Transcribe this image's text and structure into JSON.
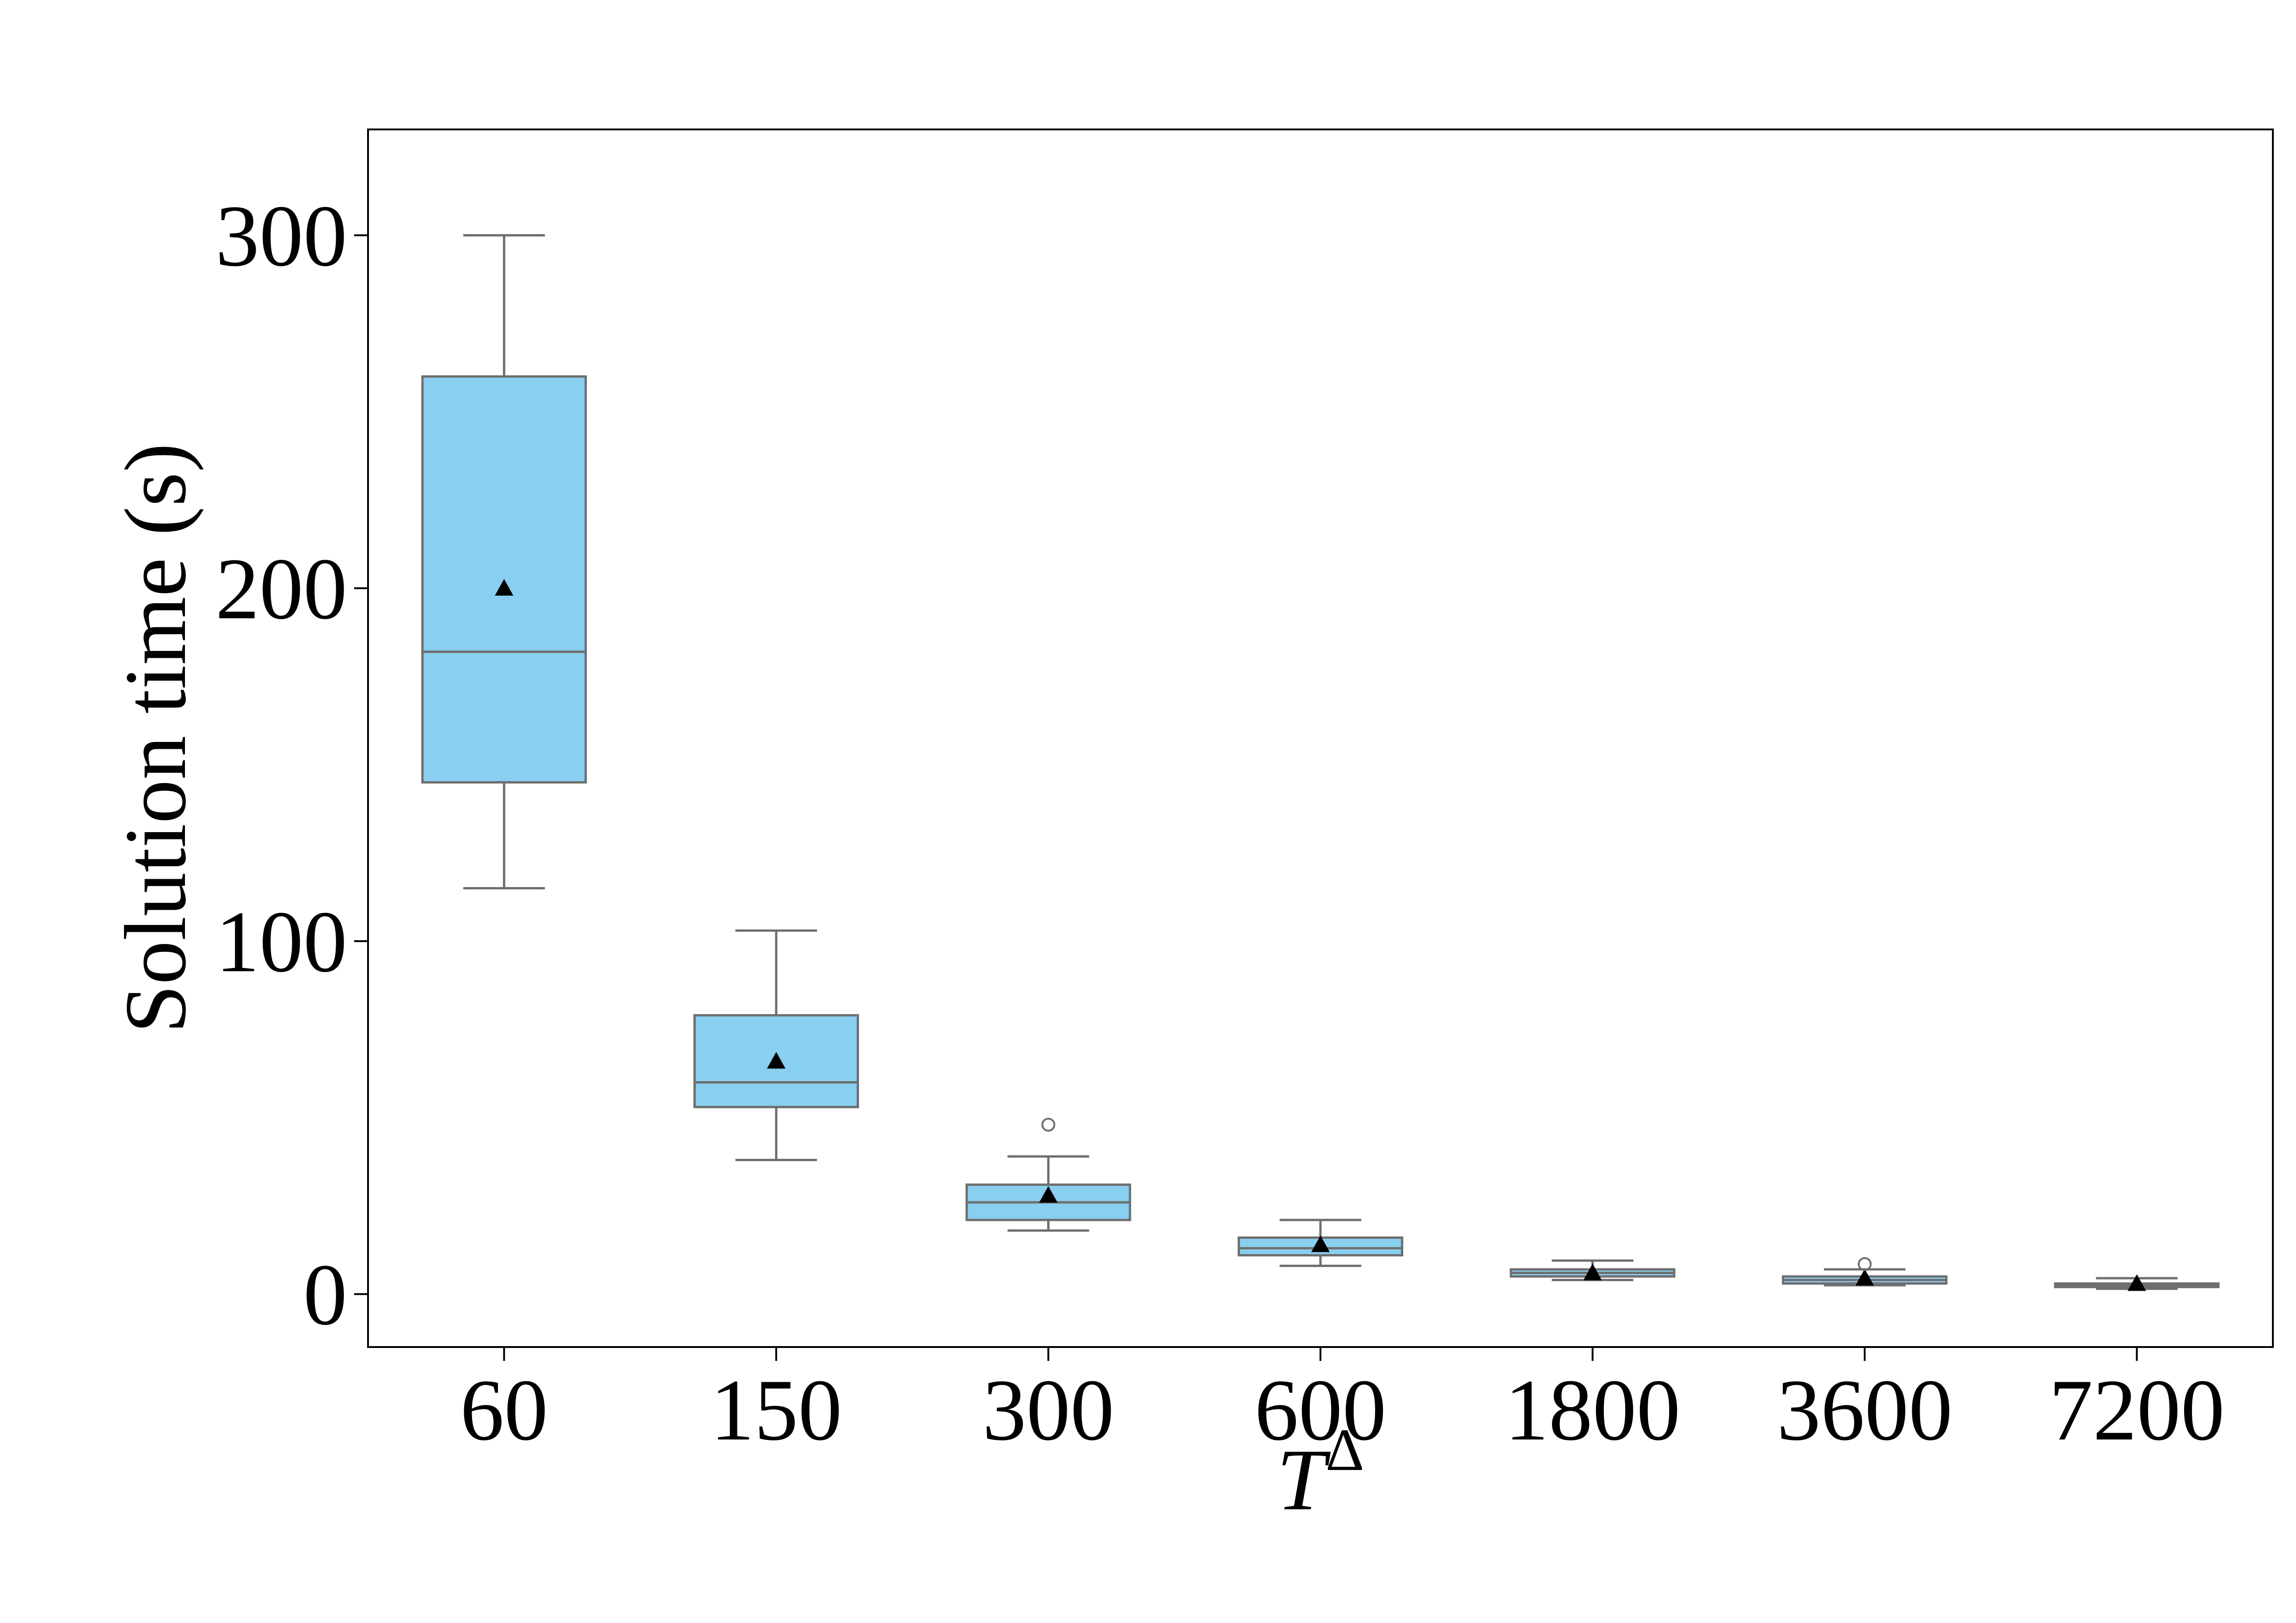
{
  "chart_data": {
    "type": "box",
    "xlabel": "T",
    "xlabel_superscript": "Δ",
    "ylabel": "Solution time (s)",
    "ylim": [
      -15,
      330
    ],
    "yticks": [
      "0",
      "100",
      "200",
      "300"
    ],
    "ytick_values": [
      0,
      100,
      200,
      300
    ],
    "categories": [
      "60",
      "150",
      "300",
      "600",
      "1800",
      "3600",
      "7200"
    ],
    "grid": false,
    "legend": "none",
    "box_color": "#89CFF0",
    "edge_color": "#6e6e6e",
    "mean_marker": "triangle",
    "boxes": [
      {
        "category": "60",
        "whisker_low": 115,
        "q1": 145,
        "median": 182,
        "q3": 260,
        "whisker_high": 300,
        "mean": 200,
        "outliers": []
      },
      {
        "category": "150",
        "whisker_low": 38,
        "q1": 53,
        "median": 60,
        "q3": 79,
        "whisker_high": 103,
        "mean": 66,
        "outliers": []
      },
      {
        "category": "300",
        "whisker_low": 18,
        "q1": 21,
        "median": 26,
        "q3": 31,
        "whisker_high": 39,
        "mean": 28,
        "outliers": [
          48
        ]
      },
      {
        "category": "600",
        "whisker_low": 8,
        "q1": 11,
        "median": 13,
        "q3": 16,
        "whisker_high": 21,
        "mean": 14,
        "outliers": []
      },
      {
        "category": "1800",
        "whisker_low": 4,
        "q1": 5,
        "median": 6,
        "q3": 7,
        "whisker_high": 9.5,
        "mean": 6,
        "outliers": []
      },
      {
        "category": "3600",
        "whisker_low": 2.5,
        "q1": 3,
        "median": 4,
        "q3": 5,
        "whisker_high": 7,
        "mean": 4.5,
        "outliers": [
          8.5
        ]
      },
      {
        "category": "7200",
        "whisker_low": 1.5,
        "q1": 2,
        "median": 2.5,
        "q3": 3,
        "whisker_high": 4.5,
        "mean": 3,
        "outliers": []
      }
    ]
  }
}
